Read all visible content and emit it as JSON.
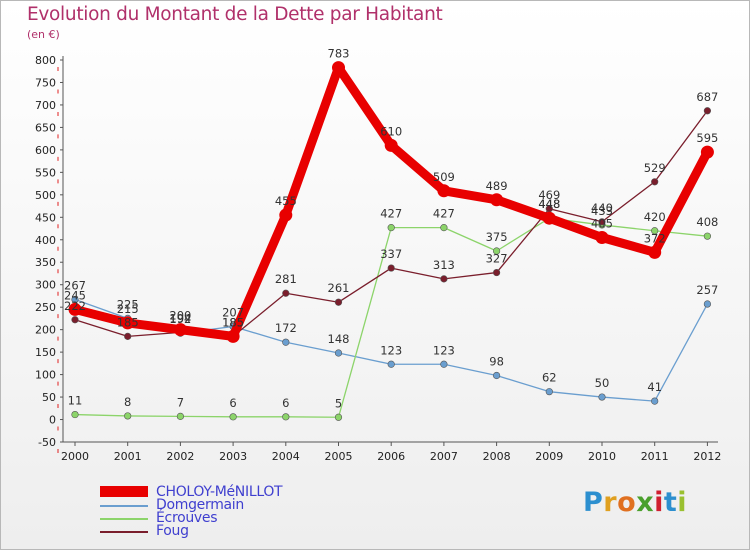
{
  "title": "Evolution du Montant de la Dette par Habitant",
  "subtitle": "(en €)",
  "logo": {
    "text": "Proxiti",
    "letters": [
      "P",
      "r",
      "o",
      "x",
      "i",
      "t",
      "i"
    ],
    "colors": [
      "#2c8fcf",
      "#e0a020",
      "#e07020",
      "#4aa02c",
      "#d02030",
      "#2c8fcf",
      "#9ac030"
    ]
  },
  "chart_data": {
    "type": "line",
    "title": "Evolution du Montant de la Dette par Habitant",
    "subtitle": "(en €)",
    "x": [
      "2000",
      "2001",
      "2002",
      "2003",
      "2004",
      "2005",
      "2006",
      "2007",
      "2008",
      "2009",
      "2010",
      "2011",
      "2012"
    ],
    "ylim": [
      -50,
      800
    ],
    "yticks": [
      -50,
      0,
      50,
      100,
      150,
      200,
      250,
      300,
      350,
      400,
      450,
      500,
      550,
      600,
      650,
      700,
      750,
      800
    ],
    "grid": false,
    "legend_position": "bottom-left",
    "series": [
      {
        "name": "CHOLOY-MéNILLOT",
        "color": "#e80000",
        "values": [
          245,
          215,
          200,
          185,
          455,
          783,
          610,
          509,
          489,
          448,
          405,
          372,
          595
        ]
      },
      {
        "name": "Domgermain",
        "color": "#6a9ecf",
        "values": [
          267,
          225,
          192,
          207,
          172,
          148,
          123,
          123,
          98,
          62,
          50,
          41,
          257
        ]
      },
      {
        "name": "Écrouves",
        "color": "#8cd46a",
        "values": [
          11,
          8,
          7,
          6,
          6,
          5,
          427,
          427,
          375,
          448,
          433,
          420,
          408
        ]
      },
      {
        "name": "Foug",
        "color": "#7a1e2c",
        "values": [
          222,
          185,
          194,
          185,
          281,
          261,
          337,
          313,
          327,
          469,
          440,
          529,
          687
        ]
      }
    ]
  },
  "legend": [
    {
      "label": "CHOLOY-MéNILLOT"
    },
    {
      "label": "Domgermain"
    },
    {
      "label": "Écrouves"
    },
    {
      "label": "Foug"
    }
  ]
}
